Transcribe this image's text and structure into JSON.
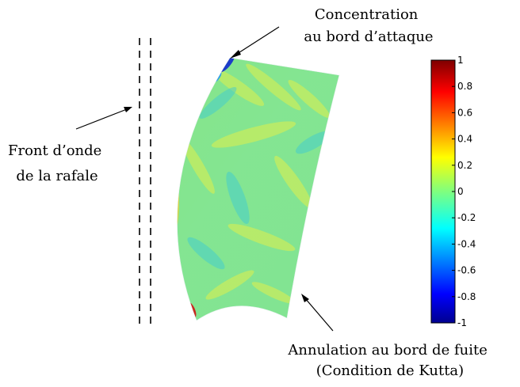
{
  "annotations": {
    "leading_edge": [
      "Concentration",
      "au bord d’attaque"
    ],
    "gust_front": [
      "Front d’onde",
      "de la rafale"
    ],
    "trailing_edge": [
      "Annulation au bord de fuite",
      "(Condition de Kutta)"
    ]
  },
  "colorbar": {
    "ticks": [
      "1",
      "0.8",
      "0.6",
      "0.4",
      "0.2",
      "0",
      "-0.2",
      "-0.4",
      "-0.6",
      "-0.8",
      "-1"
    ],
    "min": -1,
    "max": 1,
    "colormap": "jet"
  },
  "colors": {
    "background_field": "#5ee0b0",
    "leading_edge_red": "#c8281e",
    "leading_edge_blue": "#1c3cc8"
  }
}
